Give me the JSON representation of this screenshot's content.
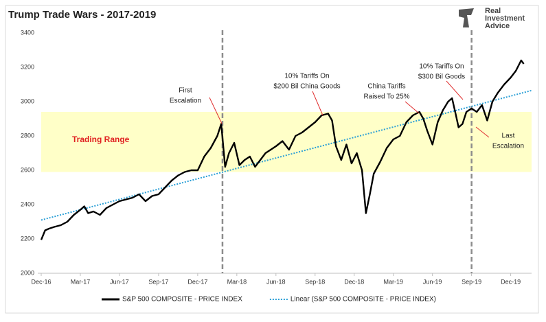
{
  "chart_data": {
    "type": "line",
    "title": "Trump Trade Wars - 2017-2019",
    "logo": [
      "Real",
      "Investment",
      "Advice"
    ],
    "xlim": [
      0,
      37.6
    ],
    "xticks": [
      {
        "value": 0,
        "label": "Dec-16"
      },
      {
        "value": 3,
        "label": "Mar-17"
      },
      {
        "value": 6,
        "label": "Jun-17"
      },
      {
        "value": 9,
        "label": "Sep-17"
      },
      {
        "value": 12,
        "label": "Dec-17"
      },
      {
        "value": 15,
        "label": "Mar-18"
      },
      {
        "value": 18,
        "label": "Jun-18"
      },
      {
        "value": 21,
        "label": "Sep-18"
      },
      {
        "value": 24,
        "label": "Dec-18"
      },
      {
        "value": 27,
        "label": "Mar-19"
      },
      {
        "value": 30,
        "label": "Jun-19"
      },
      {
        "value": 33,
        "label": "Sep-19"
      },
      {
        "value": 36,
        "label": "Dec-19"
      }
    ],
    "ylim": [
      2000,
      3400
    ],
    "yticks": [
      2000,
      2200,
      2400,
      2600,
      2800,
      3000,
      3200,
      3400
    ],
    "band": {
      "label": "Trading Range",
      "range": [
        2590,
        2940
      ],
      "color": "#ffffc8"
    },
    "vlines": [
      13.9,
      33
    ],
    "annotations": [
      [
        "First",
        "Escalation"
      ],
      [
        "10% Tariffs On",
        "$200 Bil China Goods"
      ],
      [
        "China Tariffs",
        "Raised To 25%"
      ],
      [
        "10% Tariffs On",
        "$300 Bil Goods"
      ],
      [
        "Last",
        "Escalation"
      ]
    ],
    "series": [
      {
        "name": "S&P 500 COMPOSITE - PRICE INDEX",
        "color": "#000000",
        "style": "solid",
        "x": [
          0,
          0.3,
          0.6,
          1,
          1.5,
          2,
          2.5,
          3,
          3.3,
          3.6,
          4,
          4.5,
          5,
          5.5,
          6,
          6.5,
          7,
          7.5,
          8,
          8.5,
          9,
          9.5,
          10,
          10.5,
          11,
          11.5,
          12,
          12.5,
          13,
          13.5,
          13.8,
          14.1,
          14.4,
          14.8,
          15.2,
          15.6,
          16,
          16.4,
          16.8,
          17.2,
          17.6,
          18,
          18.5,
          19,
          19.5,
          20,
          20.5,
          21,
          21.5,
          22,
          22.3,
          22.6,
          23,
          23.4,
          23.8,
          24.2,
          24.6,
          24.9,
          25.2,
          25.5,
          26,
          26.5,
          27,
          27.5,
          28,
          28.5,
          29,
          29.3,
          29.6,
          30,
          30.4,
          30.8,
          31.2,
          31.5,
          31.8,
          32,
          32.3,
          32.6,
          33,
          33.4,
          33.8,
          34.2,
          34.6,
          35,
          35.5,
          36,
          36.4,
          36.8,
          37
        ],
        "values": [
          2195,
          2250,
          2260,
          2270,
          2280,
          2300,
          2340,
          2370,
          2390,
          2350,
          2360,
          2340,
          2380,
          2400,
          2420,
          2430,
          2440,
          2460,
          2420,
          2450,
          2460,
          2500,
          2540,
          2570,
          2590,
          2600,
          2600,
          2680,
          2730,
          2800,
          2870,
          2620,
          2700,
          2760,
          2630,
          2660,
          2680,
          2620,
          2660,
          2700,
          2720,
          2740,
          2770,
          2720,
          2800,
          2820,
          2850,
          2880,
          2920,
          2930,
          2890,
          2740,
          2660,
          2750,
          2640,
          2700,
          2600,
          2350,
          2460,
          2580,
          2650,
          2730,
          2780,
          2800,
          2880,
          2920,
          2940,
          2900,
          2830,
          2750,
          2880,
          2950,
          3000,
          3020,
          2920,
          2850,
          2870,
          2940,
          2960,
          2940,
          2980,
          2890,
          3000,
          3050,
          3100,
          3140,
          3180,
          3240,
          3220
        ]
      },
      {
        "name": "Linear (S&P 500 COMPOSITE - PRICE INDEX)",
        "color": "#2a9fd6",
        "style": "dotted",
        "x": [
          0,
          37.6
        ],
        "values": [
          2310,
          3065
        ]
      }
    ]
  }
}
